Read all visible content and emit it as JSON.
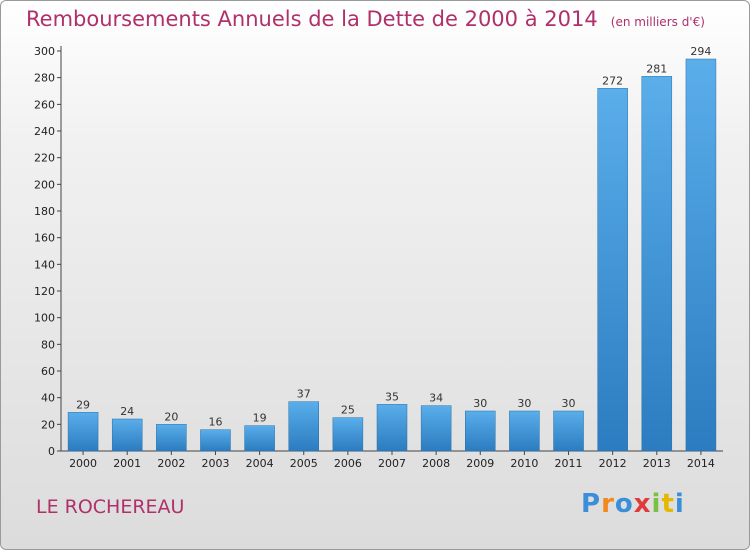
{
  "title": "Remboursements Annuels de la Dette de 2000 à 2014",
  "subtitle": "(en milliers d'€)",
  "commune": "LE ROCHEREAU",
  "logo": {
    "letters": [
      "P",
      "r",
      "o",
      "x",
      "i",
      "t",
      "i"
    ],
    "colors": [
      "#3a8fd8",
      "#f08a1c",
      "#3a8fd8",
      "#e03a3a",
      "#7ac143",
      "#e5b800",
      "#3a8fd8"
    ]
  },
  "colors": {
    "bar_light": "#5aaeea",
    "bar_dark": "#2b7cc0",
    "accent": "#b0306a"
  },
  "chart_data": {
    "type": "bar",
    "categories": [
      "2000",
      "2001",
      "2002",
      "2003",
      "2004",
      "2005",
      "2006",
      "2007",
      "2008",
      "2009",
      "2010",
      "2011",
      "2012",
      "2013",
      "2014"
    ],
    "values": [
      29,
      24,
      20,
      16,
      19,
      37,
      25,
      35,
      34,
      30,
      30,
      30,
      272,
      281,
      294
    ],
    "ylim": [
      0,
      300
    ],
    "yticks": [
      0,
      20,
      40,
      60,
      80,
      100,
      120,
      140,
      160,
      180,
      200,
      220,
      240,
      260,
      280,
      300
    ],
    "grid": false,
    "xlabel": "",
    "ylabel": ""
  }
}
